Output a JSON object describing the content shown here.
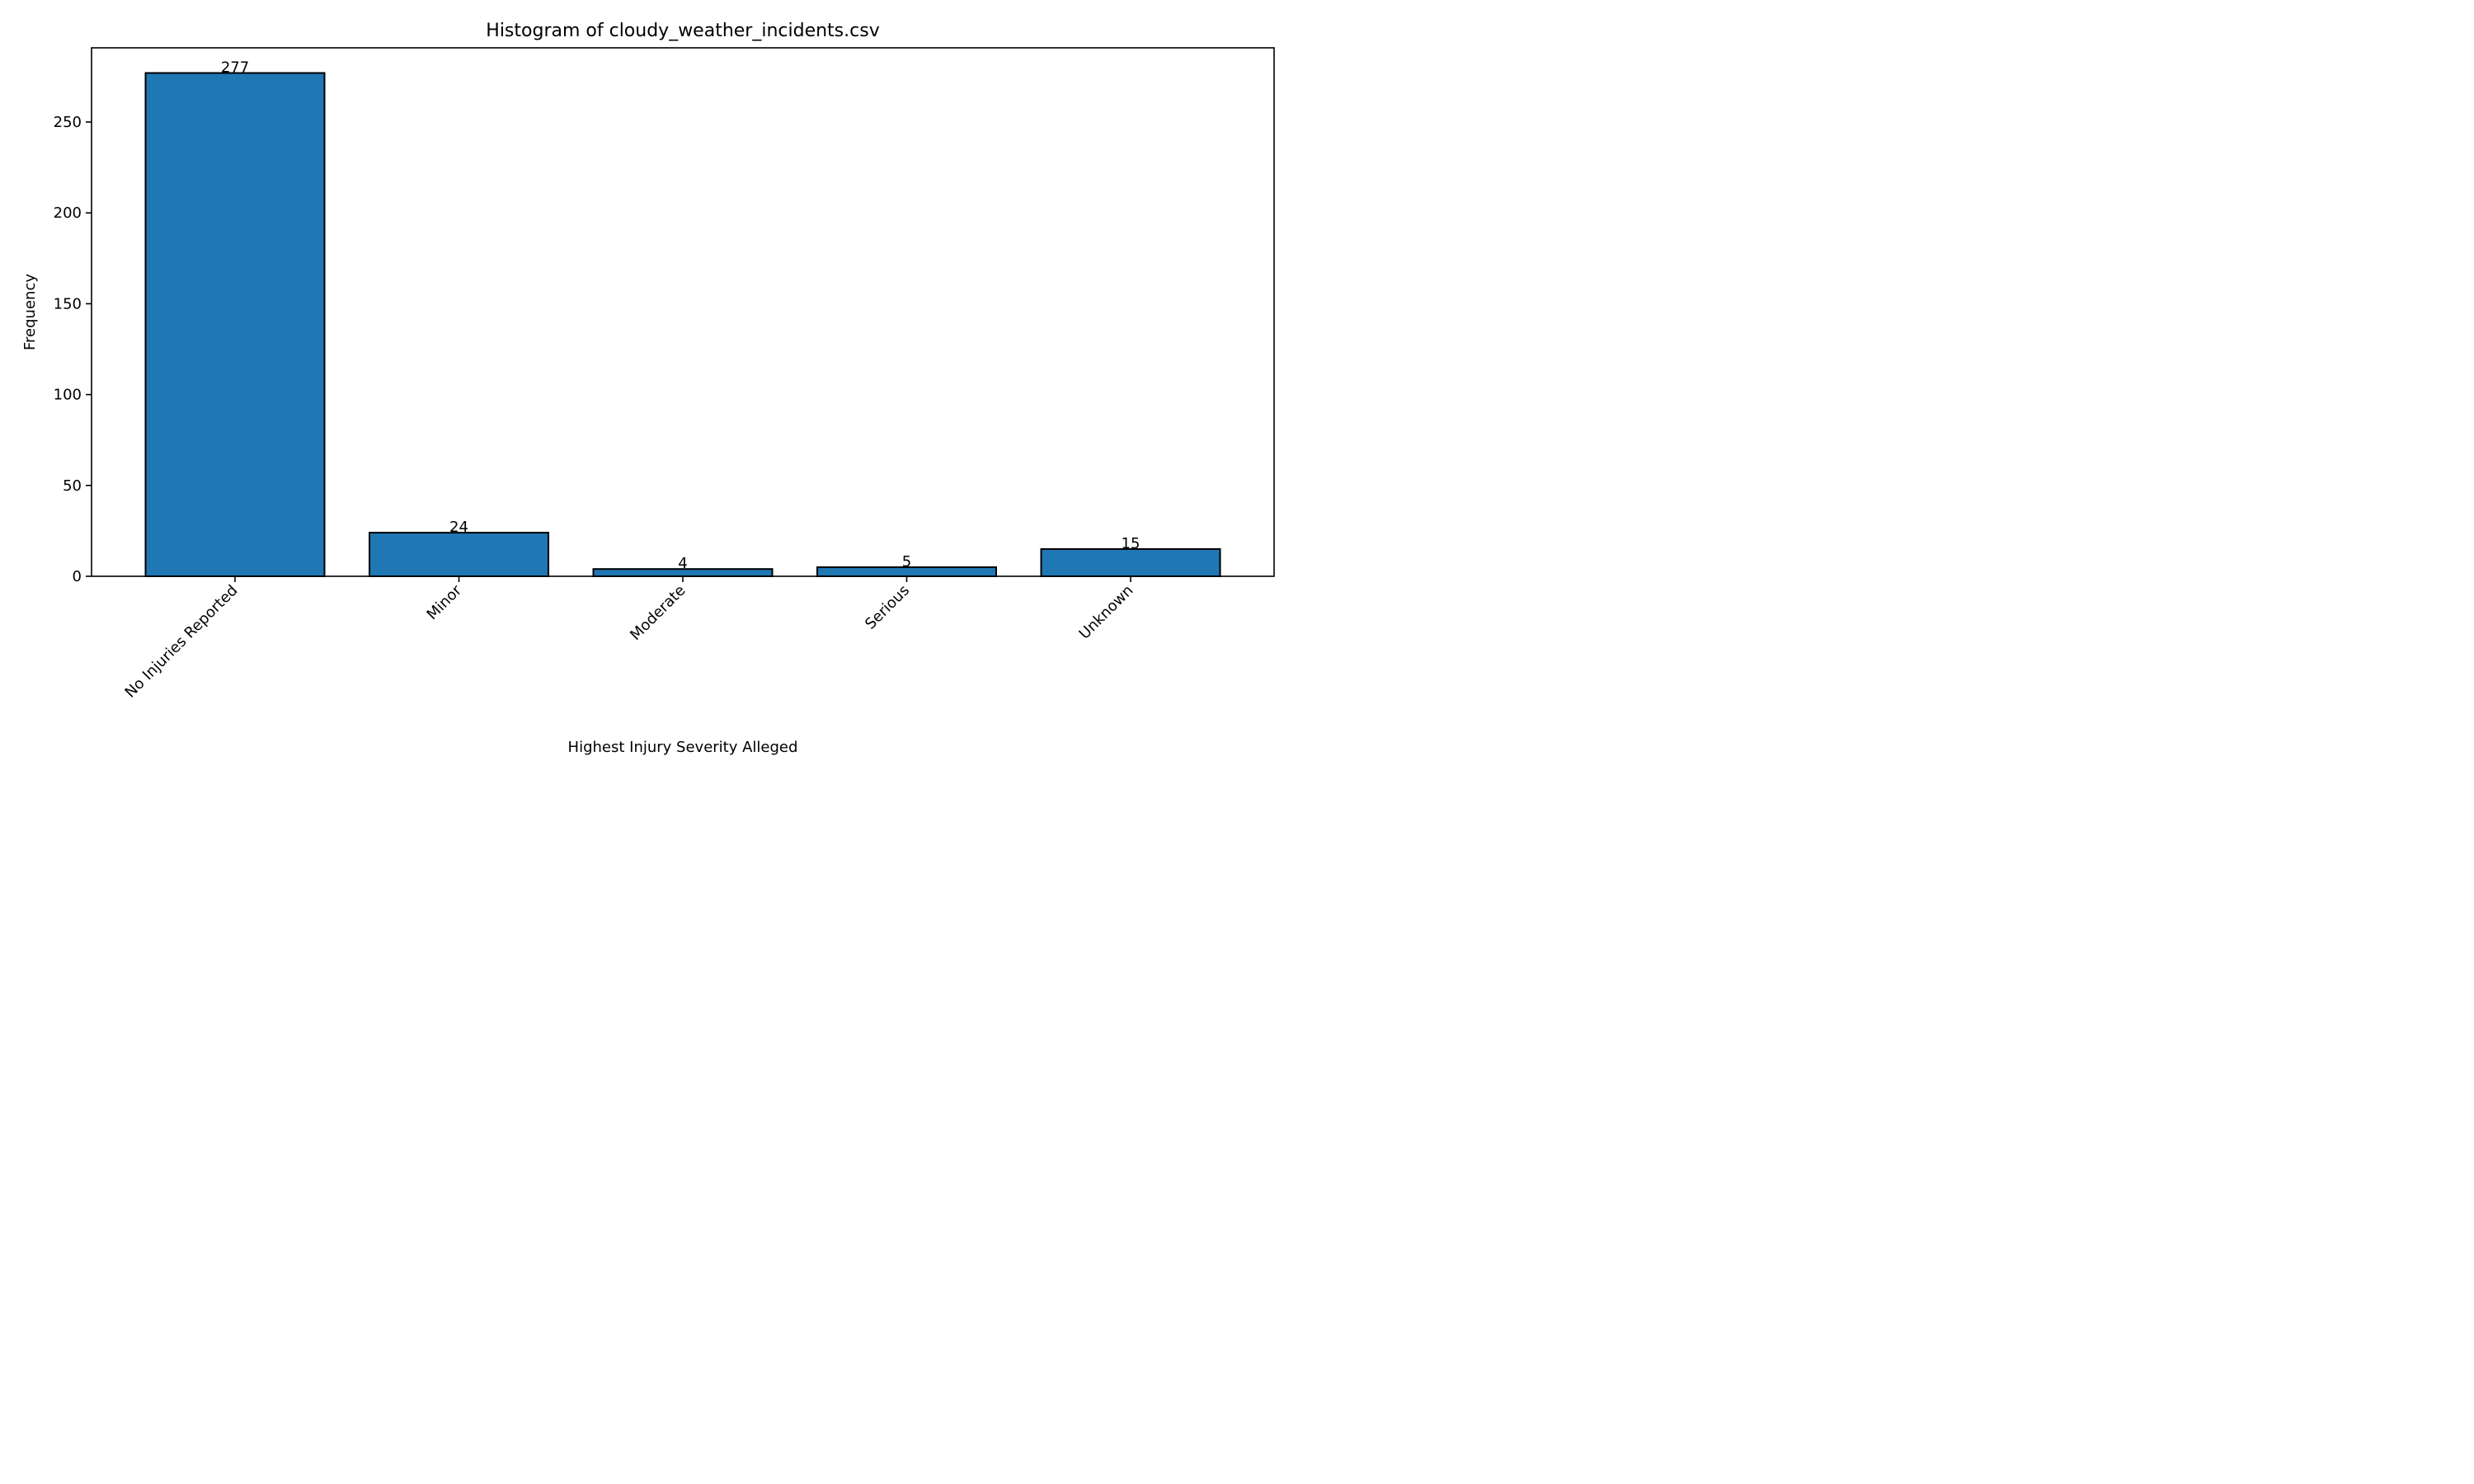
{
  "chart_data": {
    "type": "bar",
    "title": "Histogram of cloudy_weather_incidents.csv",
    "xlabel": "Highest Injury Severity Alleged",
    "ylabel": "Frequency",
    "categories": [
      "No Injuries Reported",
      "Minor",
      "Moderate",
      "Serious",
      "Unknown"
    ],
    "values": [
      277,
      24,
      4,
      5,
      15
    ],
    "data_labels": [
      "277",
      "24",
      "4",
      "5",
      "15"
    ],
    "yticks": [
      0,
      50,
      100,
      150,
      200,
      250
    ],
    "ylim": [
      0,
      290.85
    ],
    "grid": false,
    "bar_color": "#1f77b4",
    "bar_edge_color": "#000000",
    "x_tick_rotation_deg": 45
  }
}
